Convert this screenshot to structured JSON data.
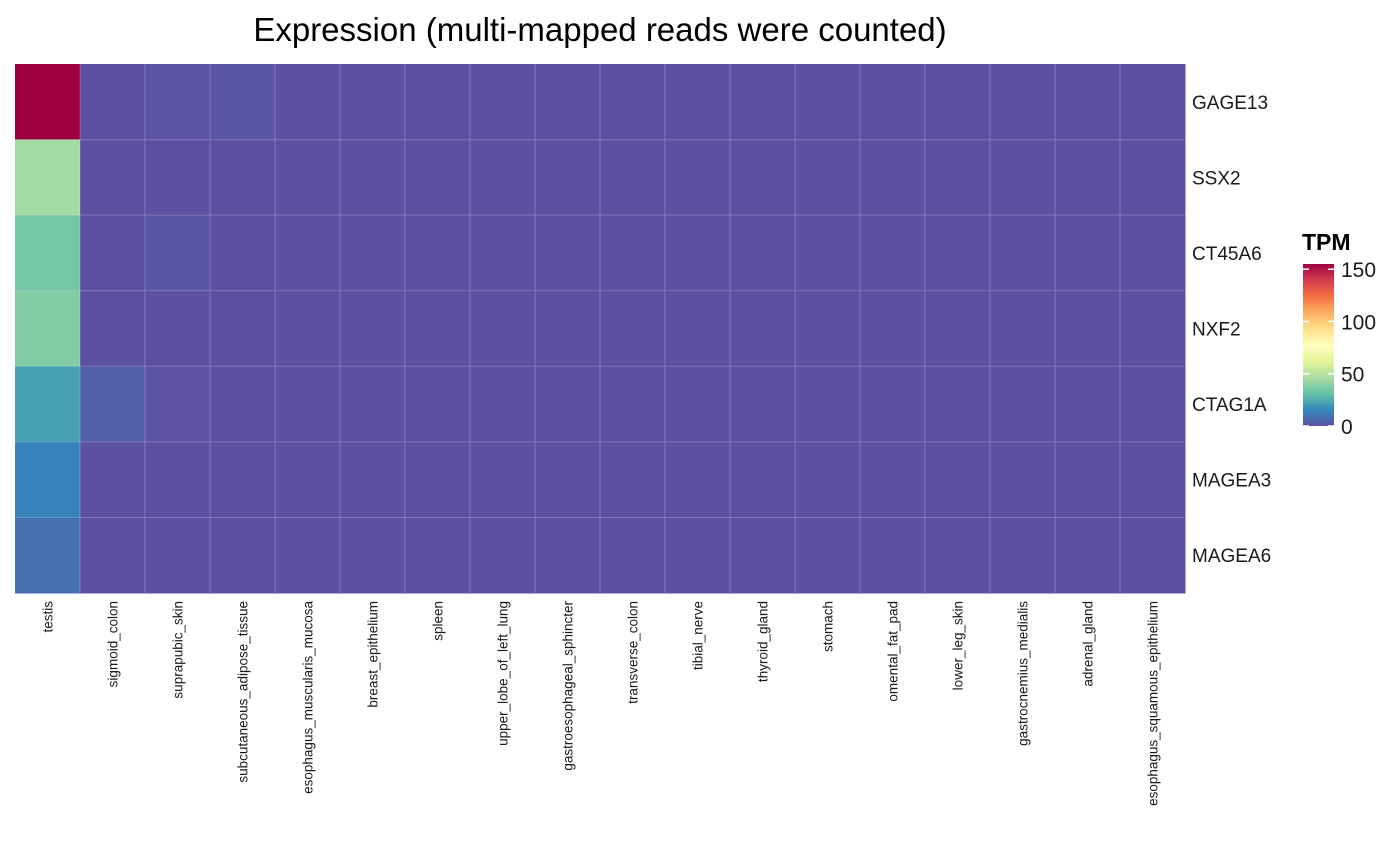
{
  "chart_data": {
    "type": "heatmap",
    "title": "Expression (multi-mapped reads were counted)",
    "x_categories": [
      "testis",
      "sigmoid_colon",
      "suprapubic_skin",
      "subcutaneous_adipose_tissue",
      "esophagus_muscularis_mucosa",
      "breast_epithelium",
      "spleen",
      "upper_lobe_of_left_lung",
      "gastroesophageal_sphincter",
      "transverse_colon",
      "tibial_nerve",
      "thyroid_gland",
      "stomach",
      "omental_fat_pad",
      "lower_leg_skin",
      "gastrocnemius_medialis",
      "adrenal_gland",
      "esophagus_squamous_epithelium"
    ],
    "y_categories": [
      "GAGE13",
      "SSX2",
      "CT45A6",
      "NXF2",
      "CTAG1A",
      "MAGEA3",
      "MAGEA6"
    ],
    "values": [
      [
        155,
        0.2,
        0.8,
        1.5,
        0.3,
        0.4,
        0.1,
        0.2,
        0.2,
        0.1,
        0.2,
        0.3,
        0.1,
        0.2,
        0.3,
        0.1,
        0.1,
        0.2
      ],
      [
        45,
        0.2,
        0.3,
        0.2,
        0.1,
        0.1,
        0.1,
        0.1,
        0.1,
        0.1,
        0.1,
        0.1,
        0.1,
        0.1,
        0.1,
        0.1,
        0.1,
        0.1
      ],
      [
        34,
        0.2,
        2.0,
        0.2,
        0.1,
        0.1,
        0.1,
        0.1,
        0.1,
        0.1,
        0.1,
        0.1,
        0.1,
        0.1,
        0.1,
        0.1,
        0.1,
        0.1
      ],
      [
        37,
        0.2,
        0.2,
        0.2,
        0.1,
        0.1,
        0.1,
        0.1,
        0.1,
        0.1,
        0.1,
        0.1,
        0.1,
        0.1,
        0.1,
        0.1,
        0.1,
        0.1
      ],
      [
        22,
        4.0,
        0.5,
        0.3,
        0.2,
        0.2,
        0.1,
        0.2,
        0.1,
        0.1,
        0.1,
        0.2,
        0.1,
        0.1,
        0.2,
        0.1,
        0.1,
        0.1
      ],
      [
        14,
        0.2,
        0.3,
        0.2,
        0.1,
        0.1,
        0.1,
        0.1,
        0.1,
        0.1,
        0.1,
        0.1,
        0.1,
        0.1,
        0.1,
        0.1,
        0.1,
        0.1
      ],
      [
        9,
        0.1,
        0.1,
        0.1,
        0.1,
        0.1,
        0.1,
        0.1,
        0.1,
        0.1,
        0.1,
        0.1,
        0.1,
        0.1,
        0.1,
        0.1,
        0.1,
        0.1
      ]
    ],
    "color_scale": {
      "name": "Spectral",
      "min": 0,
      "max": 155,
      "stops": [
        "#5e4fa2",
        "#3288bd",
        "#66c2a5",
        "#abdda4",
        "#e6f598",
        "#ffffbf",
        "#fee08b",
        "#fdae61",
        "#f46d43",
        "#d53e4f",
        "#9e0142"
      ]
    },
    "legend": {
      "title": "TPM",
      "ticks": [
        0,
        50,
        100,
        150
      ],
      "placement": "right"
    }
  }
}
